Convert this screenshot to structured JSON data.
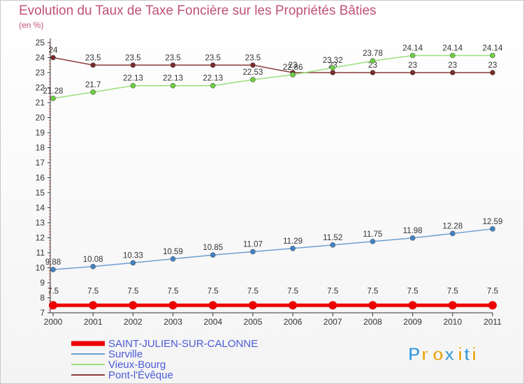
{
  "chart_data": {
    "type": "line",
    "title": "Evolution du Taux de Taxe Foncière sur les Propriétés Bâties",
    "ylabel": "(en %)",
    "xlabel": "",
    "ylim": [
      7,
      25
    ],
    "yticks": [
      7,
      8,
      9,
      10,
      11,
      12,
      13,
      14,
      15,
      16,
      17,
      18,
      19,
      20,
      21,
      22,
      23,
      24,
      25
    ],
    "x": [
      "2000",
      "2001",
      "2002",
      "2003",
      "2004",
      "2005",
      "2006",
      "2007",
      "2008",
      "2009",
      "2010",
      "2011"
    ],
    "grid": false,
    "legend_position": "bottom-left",
    "series": [
      {
        "name": "SAINT-JULIEN-SUR-CALONNE",
        "color": "#ee0000",
        "thick": true,
        "values": [
          7.5,
          7.5,
          7.5,
          7.5,
          7.5,
          7.5,
          7.5,
          7.5,
          7.5,
          7.5,
          7.5,
          7.5
        ],
        "labels": [
          "7.5",
          "7.5",
          "7.5",
          "7.5",
          "7.5",
          "7.5",
          "7.5",
          "7.5",
          "7.5",
          "7.5",
          "7.5",
          "7.5"
        ]
      },
      {
        "name": "Surville",
        "color": "#6f9fd2",
        "point_color": "#3f83c8",
        "values": [
          9.88,
          10.08,
          10.33,
          10.59,
          10.85,
          11.07,
          11.29,
          11.52,
          11.75,
          11.98,
          12.28,
          12.59
        ],
        "labels": [
          "9.88",
          "10.08",
          "10.33",
          "10.59",
          "10.85",
          "11.07",
          "11.29",
          "11.52",
          "11.75",
          "11.98",
          "12.28",
          "12.59"
        ]
      },
      {
        "name": "Vieux-Bourg",
        "color": "#99e07a",
        "point_color": "#6cd040",
        "values": [
          21.28,
          21.7,
          22.13,
          22.13,
          22.13,
          22.53,
          22.86,
          23.32,
          23.78,
          24.14,
          24.14,
          24.14
        ],
        "labels": [
          "21.28",
          "21.7",
          "22.13",
          "22.13",
          "22.13",
          "22.53",
          "22.86",
          "23.32",
          "23.78",
          "24.14",
          "24.14",
          "24.14"
        ]
      },
      {
        "name": "Pont-l'Évêque",
        "color": "#8b3a3a",
        "point_color": "#7a2a2a",
        "values": [
          24,
          23.5,
          23.5,
          23.5,
          23.5,
          23.5,
          23,
          23,
          23,
          23,
          23,
          23
        ],
        "labels": [
          "24",
          "23.5",
          "23.5",
          "23.5",
          "23.5",
          "23.5",
          "23",
          "23",
          "23",
          "23",
          "23",
          "23"
        ]
      }
    ]
  },
  "logo": {
    "letters": [
      "P",
      "r",
      "o",
      "x",
      "i",
      "t",
      "i"
    ],
    "colors": [
      "#3a9ad9",
      "#e8a317",
      "#e8a317",
      "#3a9ad9",
      "#e8a317",
      "#3a9ad9",
      "#e8a317"
    ]
  }
}
